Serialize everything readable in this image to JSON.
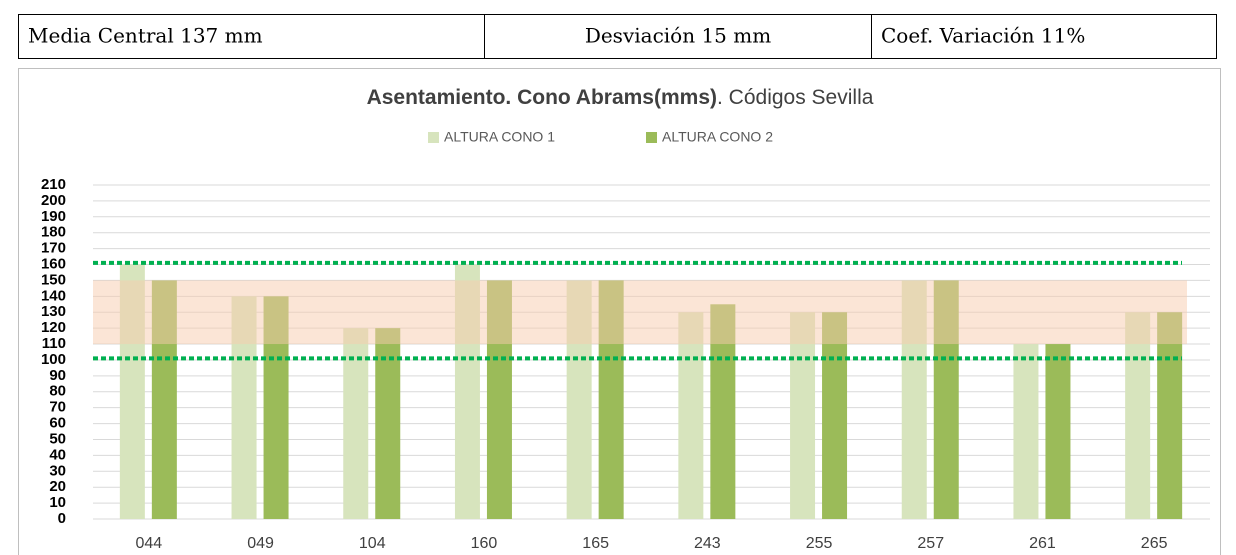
{
  "header": {
    "cells": [
      "Media Central 137 mm",
      "Desviación 15 mm",
      "Coef. Variación 11%"
    ]
  },
  "chart_data": {
    "type": "bar",
    "title": {
      "bold": "Asentamiento. Cono Abrams(mms)",
      "normal": ". Códigos Sevilla"
    },
    "categories": [
      "044",
      "049",
      "104",
      "160",
      "165",
      "243",
      "255",
      "257",
      "261",
      "265"
    ],
    "series": [
      {
        "name": "ALTURA CONO 1",
        "color": "#d7e4bd",
        "values": [
          160,
          140,
          120,
          160,
          150,
          130,
          130,
          150,
          110,
          130
        ]
      },
      {
        "name": "ALTURA CONO 2",
        "color": "#9bbb59",
        "values": [
          150,
          140,
          120,
          150,
          150,
          135,
          130,
          150,
          110,
          130
        ]
      }
    ],
    "band": {
      "range": [
        110,
        150
      ],
      "color": "#f8cbad"
    },
    "reference_lines": {
      "values": [
        161,
        101
      ],
      "color": "#00b050"
    },
    "ylim": [
      0,
      210
    ],
    "yticks": [
      0,
      10,
      20,
      30,
      40,
      50,
      60,
      70,
      80,
      90,
      100,
      110,
      120,
      130,
      140,
      150,
      160,
      170,
      180,
      190,
      200,
      210
    ],
    "grid": true,
    "legend": "top"
  }
}
